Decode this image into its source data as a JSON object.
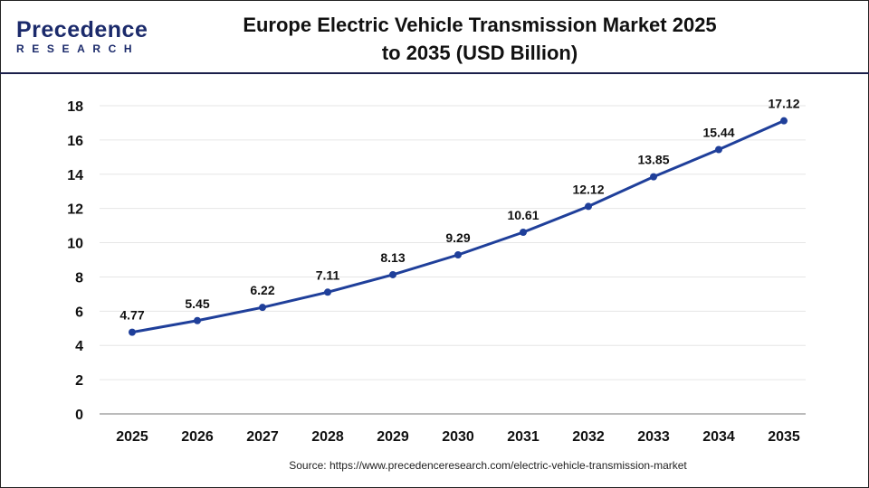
{
  "logo": {
    "line1": "Precedence",
    "line2": "RESEARCH"
  },
  "title_line1": "Europe Electric Vehicle Transmission Market 2025",
  "title_line2": "to 2035  (USD Billion)",
  "source": "Source: https://www.precedenceresearch.com/electric-vehicle-transmission-market",
  "colors": {
    "line": "#1f3f9a",
    "grid": "#e6e6e6",
    "axis": "#bbbbbb",
    "header_rule": "#1b1f4a"
  },
  "chart_data": {
    "type": "line",
    "title": "Europe Electric Vehicle Transmission Market 2025 to 2035  (USD Billion)",
    "categories": [
      "2025",
      "2026",
      "2027",
      "2028",
      "2029",
      "2030",
      "2031",
      "2032",
      "2033",
      "2034",
      "2035"
    ],
    "values": [
      4.77,
      5.45,
      6.22,
      7.11,
      8.13,
      9.29,
      10.61,
      12.12,
      13.85,
      15.44,
      17.12
    ],
    "data_labels": [
      "4.77",
      "5.45",
      "6.22",
      "7.11",
      "8.13",
      "9.29",
      "10.61",
      "12.12",
      "13.85",
      "15.44",
      "17.12"
    ],
    "yticks": [
      "0",
      "2",
      "4",
      "6",
      "8",
      "10",
      "12",
      "14",
      "16",
      "18"
    ],
    "ylim": [
      0,
      18
    ],
    "grid": true,
    "legend": "none",
    "xlabel": "",
    "ylabel": ""
  }
}
